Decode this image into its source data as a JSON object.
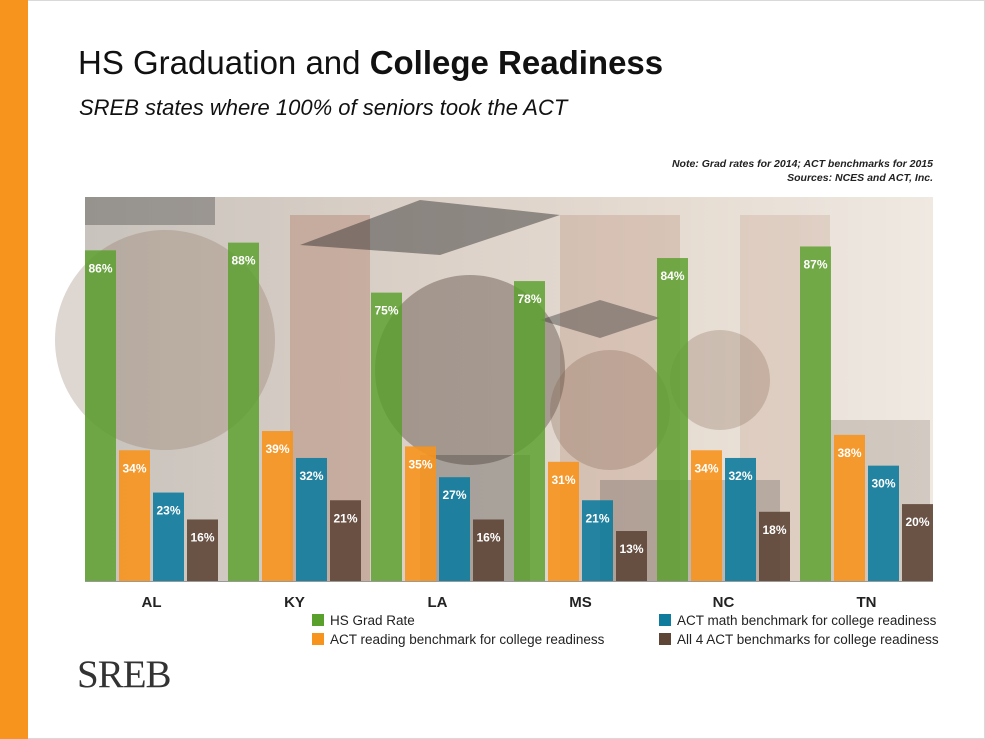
{
  "header": {
    "title_plain": "HS Graduation and ",
    "title_bold": "College Readiness",
    "subtitle": "SREB states where 100% of seniors took the ACT"
  },
  "notes": {
    "line1": "Note: Grad rates for 2014; ACT benchmarks for 2015",
    "line2": "Sources: NCES and ACT, Inc."
  },
  "logo": {
    "text": "SREB"
  },
  "colors": {
    "accent": "#f7941d",
    "grad": "#5aa02c",
    "reading": "#f7941d",
    "math": "#0f7c9e",
    "all4": "#5e4637"
  },
  "chart_data": {
    "type": "bar",
    "categories": [
      "AL",
      "KY",
      "LA",
      "MS",
      "NC",
      "TN"
    ],
    "series": [
      {
        "name": "HS Grad Rate",
        "values": [
          86,
          88,
          75,
          78,
          84,
          87
        ],
        "labels": [
          "86%",
          "88%",
          "75%",
          "78%",
          "84%",
          "87%"
        ]
      },
      {
        "name": "ACT reading benchmark for college readiness",
        "values": [
          34,
          39,
          35,
          31,
          34,
          38
        ],
        "labels": [
          "34%",
          "39%",
          "35%",
          "31%",
          "34%",
          "38%"
        ]
      },
      {
        "name": "ACT math benchmark for college readiness",
        "values": [
          23,
          32,
          27,
          21,
          32,
          30
        ],
        "labels": [
          "23%",
          "32%",
          "27%",
          "21%",
          "32%",
          "30%"
        ]
      },
      {
        "name": "All 4 ACT benchmarks for college readiness",
        "values": [
          16,
          21,
          16,
          13,
          18,
          20
        ],
        "labels": [
          "16%",
          "21%",
          "16%",
          "13%",
          "18%",
          "20%"
        ]
      }
    ],
    "ylim": [
      0,
      100
    ],
    "grid": false,
    "legend_position": "bottom"
  }
}
